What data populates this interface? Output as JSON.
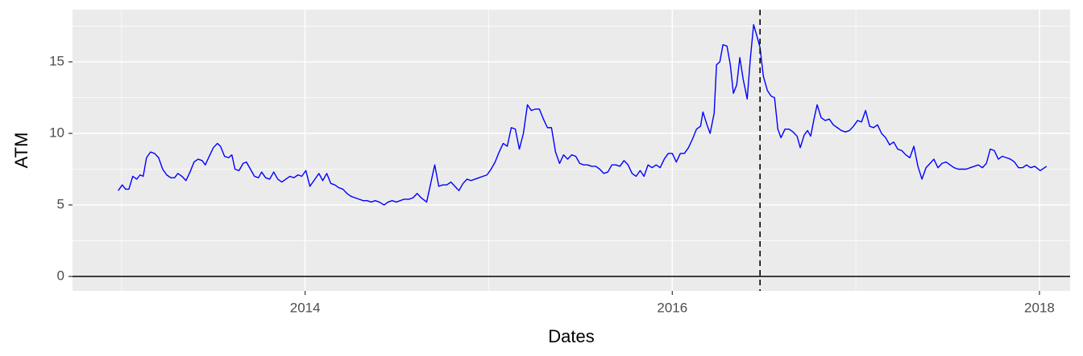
{
  "chart_data": {
    "type": "line",
    "x_label": "Dates",
    "y_label": "ATM",
    "xlim": [
      2012.733,
      2018.167
    ],
    "ylim": [
      -1.01,
      18.65
    ],
    "xticks": [
      2014,
      2016,
      2018
    ],
    "yticks": [
      0,
      5,
      10,
      15
    ],
    "xminor": [
      2013,
      2015,
      2017
    ],
    "yminor": [
      2.5,
      7.5,
      12.5,
      17.5
    ],
    "grid": true,
    "vline": 2016.478,
    "hline": 0,
    "x": [
      2012.982,
      2013.004,
      2013.022,
      2013.04,
      2013.061,
      2013.083,
      2013.101,
      2013.118,
      2013.136,
      2013.158,
      2013.18,
      2013.202,
      2013.224,
      2013.246,
      2013.268,
      2013.289,
      2013.307,
      2013.329,
      2013.351,
      2013.373,
      2013.395,
      2013.417,
      2013.439,
      2013.456,
      2013.478,
      2013.5,
      2013.522,
      2013.539,
      2013.561,
      2013.583,
      2013.601,
      2013.618,
      2013.64,
      2013.662,
      2013.68,
      2013.702,
      2013.724,
      2013.746,
      2013.763,
      2013.785,
      2013.807,
      2013.829,
      2013.851,
      2013.873,
      2013.895,
      2013.917,
      2013.939,
      2013.961,
      2013.982,
      2014.004,
      2014.026,
      2014.048,
      2014.075,
      2014.096,
      2014.118,
      2014.14,
      2014.162,
      2014.184,
      2014.206,
      2014.228,
      2014.25,
      2014.272,
      2014.294,
      2014.316,
      2014.338,
      2014.36,
      2014.382,
      2014.404,
      2014.43,
      2014.452,
      2014.474,
      2014.496,
      2014.518,
      2014.539,
      2014.566,
      2014.588,
      2014.61,
      2014.632,
      2014.662,
      2014.684,
      2014.706,
      2014.728,
      2014.75,
      2014.772,
      2014.794,
      2014.816,
      2014.838,
      2014.86,
      2014.882,
      2014.904,
      2014.925,
      2014.947,
      2014.969,
      2014.991,
      2015.013,
      2015.035,
      2015.057,
      2015.079,
      2015.101,
      2015.123,
      2015.145,
      2015.167,
      2015.189,
      2015.211,
      2015.232,
      2015.254,
      2015.276,
      2015.298,
      2015.32,
      2015.342,
      2015.364,
      2015.386,
      2015.408,
      2015.43,
      2015.452,
      2015.474,
      2015.496,
      2015.518,
      2015.539,
      2015.561,
      2015.583,
      2015.605,
      2015.627,
      2015.649,
      2015.671,
      2015.693,
      2015.715,
      2015.737,
      2015.759,
      2015.781,
      2015.803,
      2015.825,
      2015.846,
      2015.868,
      2015.89,
      2015.912,
      2015.934,
      2015.956,
      2015.978,
      2016.0,
      2016.022,
      2016.044,
      2016.066,
      2016.088,
      2016.11,
      2016.132,
      2016.154,
      2016.167,
      2016.189,
      2016.206,
      2016.228,
      2016.241,
      2016.259,
      2016.276,
      2016.298,
      2016.316,
      2016.333,
      2016.351,
      2016.368,
      2016.386,
      2016.408,
      2016.425,
      2016.443,
      2016.461,
      2016.478,
      2016.496,
      2016.518,
      2016.539,
      2016.557,
      2016.575,
      2016.592,
      2016.614,
      2016.636,
      2016.658,
      2016.68,
      2016.697,
      2016.719,
      2016.737,
      2016.754,
      2016.772,
      2016.789,
      2016.811,
      2016.833,
      2016.855,
      2016.877,
      2016.899,
      2016.921,
      2016.943,
      2016.965,
      2016.987,
      2017.009,
      2017.031,
      2017.053,
      2017.075,
      2017.096,
      2017.118,
      2017.14,
      2017.162,
      2017.184,
      2017.206,
      2017.228,
      2017.25,
      2017.272,
      2017.294,
      2017.316,
      2017.338,
      2017.36,
      2017.382,
      2017.404,
      2017.425,
      2017.447,
      2017.469,
      2017.491,
      2017.513,
      2017.535,
      2017.557,
      2017.579,
      2017.601,
      2017.623,
      2017.645,
      2017.667,
      2017.689,
      2017.711,
      2017.732,
      2017.754,
      2017.776,
      2017.798,
      2017.82,
      2017.842,
      2017.864,
      2017.886,
      2017.908,
      2017.93,
      2017.952,
      2017.974,
      2018.004,
      2018.039
    ],
    "series": [
      {
        "name": "ATM",
        "color": "#0000ff",
        "values": [
          6.0,
          6.4,
          6.1,
          6.1,
          7.0,
          6.8,
          7.1,
          7.0,
          8.3,
          8.7,
          8.6,
          8.3,
          7.5,
          7.1,
          6.9,
          6.9,
          7.2,
          7.0,
          6.7,
          7.3,
          8.0,
          8.2,
          8.1,
          7.8,
          8.4,
          9.0,
          9.3,
          9.1,
          8.4,
          8.3,
          8.5,
          7.5,
          7.4,
          7.9,
          8.0,
          7.5,
          7.0,
          6.9,
          7.3,
          6.9,
          6.8,
          7.3,
          6.8,
          6.6,
          6.8,
          7.0,
          6.9,
          7.1,
          7.0,
          7.4,
          6.3,
          6.7,
          7.2,
          6.7,
          7.2,
          6.5,
          6.4,
          6.2,
          6.1,
          5.8,
          5.6,
          5.5,
          5.4,
          5.3,
          5.3,
          5.2,
          5.3,
          5.2,
          5.0,
          5.2,
          5.3,
          5.2,
          5.3,
          5.4,
          5.4,
          5.5,
          5.8,
          5.5,
          5.2,
          6.5,
          7.8,
          6.3,
          6.4,
          6.4,
          6.6,
          6.3,
          6.0,
          6.5,
          6.8,
          6.7,
          6.8,
          6.9,
          7.0,
          7.1,
          7.5,
          8.0,
          8.7,
          9.3,
          9.1,
          10.4,
          10.3,
          8.9,
          10.0,
          12.0,
          11.6,
          11.7,
          11.7,
          11.0,
          10.4,
          10.4,
          8.7,
          7.9,
          8.5,
          8.2,
          8.5,
          8.4,
          7.9,
          7.8,
          7.8,
          7.7,
          7.7,
          7.5,
          7.2,
          7.3,
          7.8,
          7.8,
          7.7,
          8.1,
          7.8,
          7.2,
          7.0,
          7.4,
          7.0,
          7.8,
          7.6,
          7.8,
          7.6,
          8.2,
          8.6,
          8.6,
          8.0,
          8.6,
          8.6,
          9.0,
          9.6,
          10.3,
          10.5,
          11.5,
          10.6,
          10.0,
          11.4,
          14.8,
          15.0,
          16.2,
          16.1,
          14.8,
          12.8,
          13.4,
          15.3,
          13.8,
          12.4,
          15.2,
          17.6,
          16.8,
          16.0,
          14.0,
          13.0,
          12.6,
          12.5,
          10.3,
          9.7,
          10.3,
          10.3,
          10.1,
          9.8,
          9.0,
          9.9,
          10.2,
          9.8,
          11.0,
          12.0,
          11.1,
          10.9,
          11.0,
          10.6,
          10.4,
          10.2,
          10.1,
          10.2,
          10.5,
          10.9,
          10.8,
          11.6,
          10.5,
          10.4,
          10.6,
          10.0,
          9.7,
          9.2,
          9.4,
          8.9,
          8.8,
          8.5,
          8.3,
          9.1,
          7.7,
          6.8,
          7.6,
          7.9,
          8.2,
          7.6,
          7.9,
          8.0,
          7.8,
          7.6,
          7.5,
          7.5,
          7.5,
          7.6,
          7.7,
          7.8,
          7.6,
          7.9,
          8.9,
          8.8,
          8.2,
          8.4,
          8.3,
          8.2,
          8.0,
          7.6,
          7.6,
          7.8,
          7.6,
          7.7,
          7.4,
          7.7
        ]
      }
    ]
  }
}
